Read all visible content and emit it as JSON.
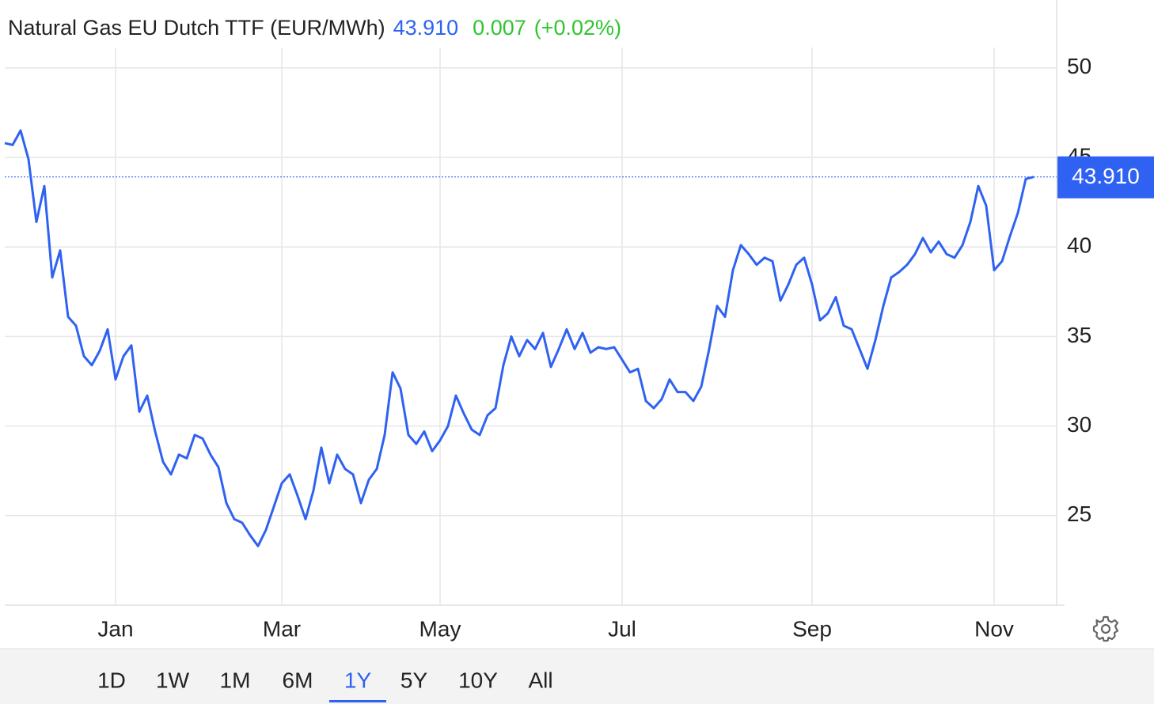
{
  "chart_data": {
    "type": "line",
    "title": "Natural Gas EU Dutch TTF (EUR/MWh)",
    "price": {
      "value": 43.91,
      "label": "43.910"
    },
    "change": 0.007,
    "change_percent": "(+0.02%)",
    "color": "#2f62f2",
    "price_color": "#2f62f2",
    "change_color": "#2ec52e",
    "categories": [
      null,
      null,
      null,
      null,
      null,
      null,
      null,
      null,
      null,
      null,
      null,
      null,
      null,
      null,
      "Jan",
      null,
      null,
      null,
      null,
      null,
      null,
      null,
      null,
      null,
      null,
      null,
      null,
      null,
      null,
      null,
      null,
      null,
      null,
      null,
      null,
      "Mar",
      null,
      null,
      null,
      null,
      null,
      null,
      null,
      null,
      null,
      null,
      null,
      null,
      null,
      null,
      null,
      null,
      null,
      null,
      null,
      "May",
      null,
      null,
      null,
      null,
      null,
      null,
      null,
      null,
      null,
      null,
      null,
      null,
      null,
      null,
      null,
      null,
      null,
      null,
      null,
      null,
      null,
      null,
      "Jul",
      null,
      null,
      null,
      null,
      null,
      null,
      null,
      null,
      null,
      null,
      null,
      null,
      null,
      null,
      null,
      null,
      null,
      null,
      null,
      null,
      null,
      null,
      null,
      "Sep",
      null,
      null,
      null,
      null,
      null,
      null,
      null,
      null,
      null,
      null,
      null,
      null,
      null,
      null,
      null,
      null,
      null,
      null,
      null,
      null,
      null,
      null,
      "Nov",
      null,
      null,
      null,
      null,
      null
    ],
    "values": [
      45.8,
      45.7,
      46.5,
      44.9,
      41.4,
      43.4,
      38.3,
      39.8,
      36.1,
      35.6,
      33.9,
      33.4,
      34.2,
      35.4,
      32.6,
      33.9,
      34.5,
      30.8,
      31.7,
      29.7,
      28.0,
      27.3,
      28.4,
      28.2,
      29.5,
      29.3,
      28.4,
      27.7,
      25.7,
      24.8,
      24.6,
      23.9,
      23.3,
      24.2,
      25.5,
      26.8,
      27.3,
      26.1,
      24.8,
      26.4,
      28.8,
      26.8,
      28.4,
      27.6,
      27.3,
      25.7,
      27.0,
      27.6,
      29.5,
      33.0,
      32.1,
      29.5,
      29.0,
      29.7,
      28.6,
      29.2,
      30.0,
      31.7,
      30.7,
      29.8,
      29.5,
      30.6,
      31.0,
      33.4,
      35.0,
      33.9,
      34.8,
      34.3,
      35.2,
      33.3,
      34.3,
      35.4,
      34.3,
      35.2,
      34.1,
      34.4,
      34.3,
      34.4,
      33.7,
      33.0,
      33.2,
      31.4,
      31.0,
      31.5,
      32.6,
      31.9,
      31.9,
      31.4,
      32.2,
      34.3,
      36.7,
      36.1,
      38.7,
      40.1,
      39.6,
      39.0,
      39.4,
      39.2,
      37.0,
      37.9,
      39.0,
      39.4,
      37.9,
      35.9,
      36.3,
      37.2,
      35.6,
      35.4,
      34.3,
      33.2,
      34.8,
      36.7,
      38.3,
      38.6,
      39.0,
      39.6,
      40.5,
      39.7,
      40.3,
      39.6,
      39.4,
      40.1,
      41.4,
      43.4,
      42.3,
      38.7,
      39.2,
      40.6,
      41.9,
      43.8,
      43.91
    ],
    "ylim": [
      20,
      51
    ],
    "yticks": [
      25,
      30,
      35,
      40,
      45,
      50
    ],
    "grid": true,
    "range_buttons": [
      "1D",
      "1W",
      "1M",
      "6M",
      "1Y",
      "5Y",
      "10Y",
      "All"
    ],
    "active_range": 4
  }
}
